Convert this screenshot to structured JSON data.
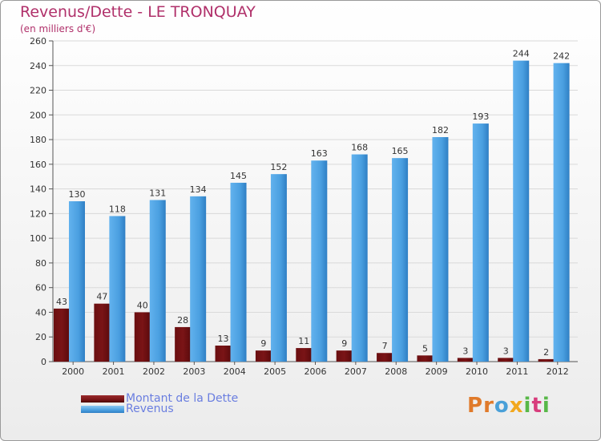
{
  "title": "Revenus/Dette - LE TRONQUAY",
  "subtitle": "(en milliers d'€)",
  "logo": {
    "letters": [
      "P",
      "r",
      "o",
      "x",
      "i",
      "t",
      "i"
    ],
    "colors": [
      "#e07a2a",
      "#e07a2a",
      "#4aa0d8",
      "#f2a81e",
      "#58b848",
      "#d83c7c",
      "#58b848"
    ]
  },
  "colors": {
    "dette": "#7a1416",
    "revenus": "#4a9fe0",
    "axis_text": "#333333",
    "grid": "#d9d9d9"
  },
  "chart_data": {
    "type": "bar",
    "title": "Revenus/Dette - LE TRONQUAY",
    "subtitle": "(en milliers d'€)",
    "categories": [
      "2000",
      "2001",
      "2002",
      "2003",
      "2004",
      "2005",
      "2006",
      "2007",
      "2008",
      "2009",
      "2010",
      "2011",
      "2012"
    ],
    "series": [
      {
        "name": "Montant de la Dette",
        "values": [
          43,
          47,
          40,
          28,
          13,
          9,
          11,
          9,
          7,
          5,
          3,
          3,
          2
        ]
      },
      {
        "name": "Revenus",
        "values": [
          130,
          118,
          131,
          134,
          145,
          152,
          163,
          168,
          165,
          182,
          193,
          244,
          242
        ]
      }
    ],
    "ylim": [
      0,
      260
    ],
    "yticks": [
      0,
      20,
      40,
      60,
      80,
      100,
      120,
      140,
      160,
      180,
      200,
      220,
      240,
      260
    ],
    "grid": true,
    "legend_position": "bottom-left"
  }
}
